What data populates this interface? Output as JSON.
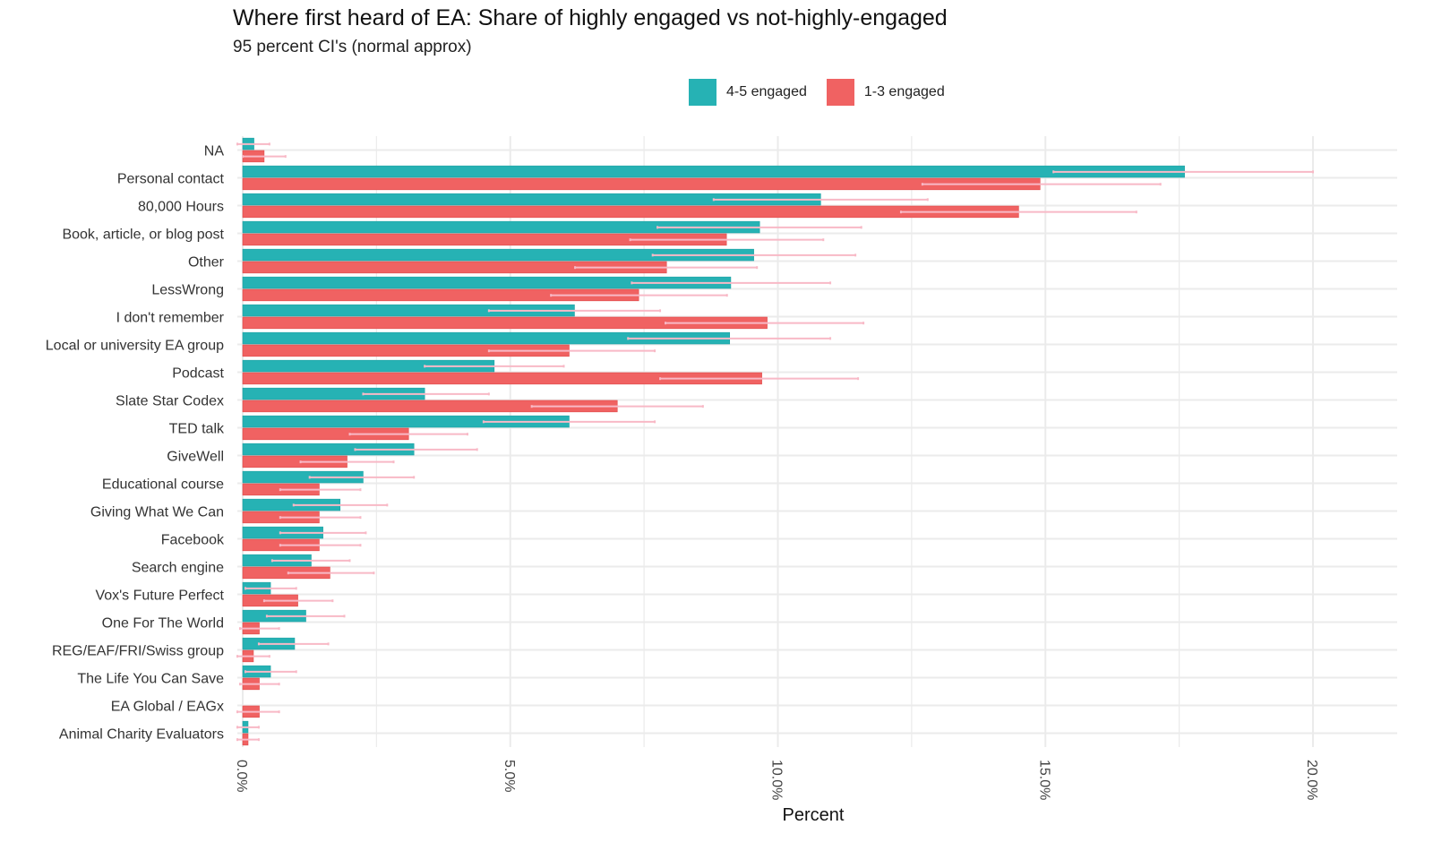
{
  "chart_data": {
    "type": "bar",
    "orientation": "horizontal",
    "title": "Where first heard of EA: Share of highly engaged vs not-highly-engaged",
    "subtitle": "95 percent CI's (normal approx)",
    "xlabel": "Percent",
    "ylabel": "",
    "xlim": [
      0,
      21.6
    ],
    "x_ticks": [
      0,
      5,
      10,
      15,
      20
    ],
    "x_tick_labels": [
      "0.0%",
      "5.0%",
      "10.0%",
      "15.0%",
      "20.0%"
    ],
    "grid": true,
    "legend_position": "top-right",
    "error_bars": "95% CI (normal approx)",
    "categories": [
      "NA",
      "Personal contact",
      "80,000 Hours",
      "Book, article, or blog post",
      "Other",
      "LessWrong",
      "I don't remember",
      "Local or university EA group",
      "Podcast",
      "Slate Star Codex",
      "TED talk",
      "GiveWell",
      "Educational course",
      "Giving What We Can",
      "Facebook",
      "Search engine",
      "Vox's Future Perfect",
      "One For The World",
      "REG/EAF/FRI/Swiss group",
      "The Life You Can Save",
      "EA Global / EAGx",
      "Animal Charity Evaluators"
    ],
    "series": [
      {
        "name": "4-5 engaged",
        "color": "#26b2b4",
        "values": [
          0.21,
          17.6,
          10.8,
          9.66,
          9.55,
          9.12,
          6.2,
          9.1,
          4.7,
          3.4,
          6.1,
          3.2,
          2.25,
          1.82,
          1.5,
          1.28,
          0.52,
          1.18,
          0.97,
          0.52,
          0.0,
          0.1
        ],
        "ci_low": [
          -0.1,
          15.15,
          8.8,
          7.75,
          7.66,
          7.27,
          4.6,
          7.2,
          3.4,
          2.25,
          4.5,
          2.1,
          1.25,
          0.95,
          0.7,
          0.55,
          0.05,
          0.45,
          0.3,
          0.05,
          0.0,
          -0.1
        ],
        "ci_high": [
          0.5,
          20.0,
          12.8,
          11.56,
          11.45,
          10.98,
          7.8,
          10.98,
          6.0,
          4.6,
          7.7,
          4.38,
          3.2,
          2.7,
          2.3,
          2.0,
          1.0,
          1.9,
          1.6,
          1.0,
          0.0,
          0.3
        ]
      },
      {
        "name": "1-3 engaged",
        "color": "#f06262",
        "values": [
          0.4,
          14.9,
          14.5,
          9.04,
          7.92,
          7.4,
          9.8,
          6.1,
          9.7,
          7.0,
          3.1,
          1.95,
          1.43,
          1.43,
          1.43,
          1.63,
          1.03,
          0.31,
          0.2,
          0.31,
          0.31,
          0.1
        ],
        "ci_low": [
          0.0,
          12.7,
          12.3,
          7.24,
          6.21,
          5.76,
          7.9,
          4.6,
          7.8,
          5.4,
          2.0,
          1.08,
          0.7,
          0.7,
          0.7,
          0.85,
          0.4,
          -0.05,
          -0.1,
          -0.05,
          -0.1,
          -0.1
        ],
        "ci_high": [
          0.8,
          17.15,
          16.7,
          10.85,
          9.61,
          9.05,
          11.6,
          7.7,
          11.5,
          8.6,
          4.2,
          2.82,
          2.2,
          2.2,
          2.2,
          2.45,
          1.68,
          0.68,
          0.5,
          0.68,
          0.68,
          0.3
        ]
      }
    ],
    "errorbar_color": "#f8b9c6",
    "gridline_color": "#ebebeb"
  }
}
